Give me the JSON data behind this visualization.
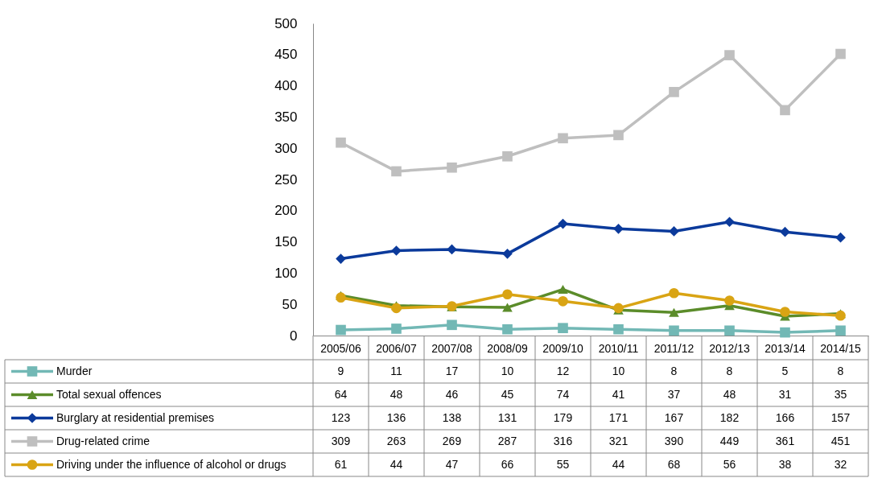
{
  "chart_data": {
    "type": "line",
    "categories": [
      "2005/06",
      "2006/07",
      "2007/08",
      "2008/09",
      "2009/10",
      "2010/11",
      "2011/12",
      "2012/13",
      "2013/14",
      "2014/15"
    ],
    "series": [
      {
        "name": "Murder",
        "color": "#72b8b5",
        "marker": "square",
        "values": [
          9,
          11,
          17,
          10,
          12,
          10,
          8,
          8,
          5,
          8
        ]
      },
      {
        "name": "Total sexual offences",
        "color": "#5b8c2a",
        "marker": "triangle",
        "values": [
          64,
          48,
          46,
          45,
          74,
          41,
          37,
          48,
          31,
          35
        ]
      },
      {
        "name": "Burglary at residential premises",
        "color": "#0b3a9b",
        "marker": "diamond",
        "values": [
          123,
          136,
          138,
          131,
          179,
          171,
          167,
          182,
          166,
          157
        ]
      },
      {
        "name": "Drug-related crime",
        "color": "#bfbfbf",
        "marker": "square",
        "values": [
          309,
          263,
          269,
          287,
          316,
          321,
          390,
          449,
          361,
          451
        ]
      },
      {
        "name": "Driving under the influence of alcohol or drugs",
        "color": "#d9a414",
        "marker": "circle",
        "values": [
          61,
          44,
          47,
          66,
          55,
          44,
          68,
          56,
          38,
          32
        ]
      }
    ],
    "ylim": [
      0,
      500
    ],
    "yticks": [
      0,
      50,
      100,
      150,
      200,
      250,
      300,
      350,
      400,
      450,
      500
    ],
    "grid": false,
    "legend": "bottom",
    "data_labels": true,
    "line_style": "solid"
  }
}
